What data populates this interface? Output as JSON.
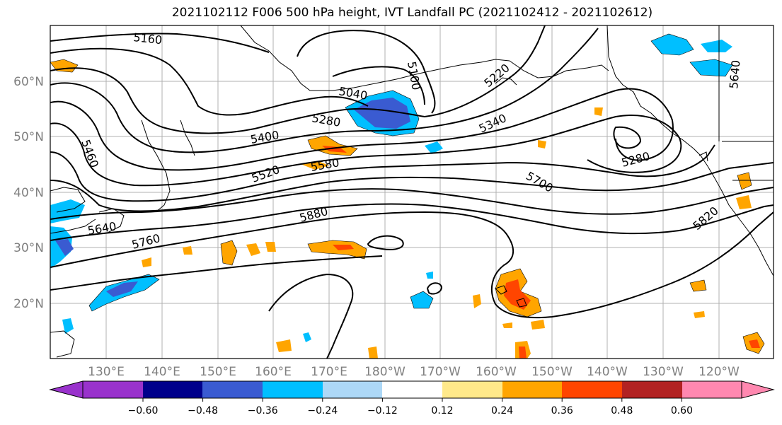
{
  "title": "2021102112 F006 500 hPa height, IVT Landfall PC (2021102412 - 2021102612)",
  "lat_labels": [
    "60°N",
    "50°N",
    "40°N",
    "30°N",
    "20°N"
  ],
  "lon_labels": [
    "130°E",
    "140°E",
    "150°E",
    "160°E",
    "170°E",
    "180°W",
    "170°W",
    "160°W",
    "150°W",
    "140°W",
    "130°W",
    "120°W"
  ],
  "contour_labels": [
    "5160",
    "5100",
    "5220",
    "5040",
    "5640",
    "5280",
    "5340",
    "5400",
    "5460",
    "5520",
    "5580",
    "5280",
    "5700",
    "5880",
    "5640",
    "5760",
    "5820"
  ],
  "colorbar": {
    "ticks": [
      "−0.60",
      "−0.48",
      "−0.36",
      "−0.24",
      "−0.12",
      "0.12",
      "0.24",
      "0.36",
      "0.48",
      "0.60"
    ],
    "colors": [
      "#9932cc",
      "#00008b",
      "#3a5bd1",
      "#00bfff",
      "#add8f7",
      "#ffffff",
      "#ffe98a",
      "#ffa500",
      "#ff4500",
      "#b22222",
      "#ff88b0"
    ]
  }
}
